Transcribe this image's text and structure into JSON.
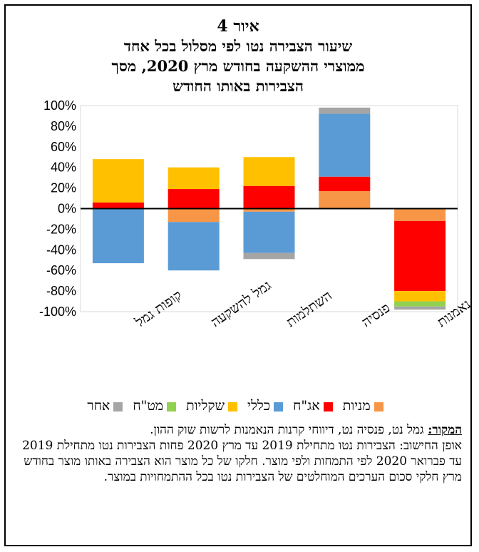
{
  "figure": {
    "label": "איור 4",
    "title_lines": [
      "שיעור הצבירה נטו לפי מסלול בכל אחד",
      "ממוצרי ההשקעה בחודש מרץ 2020, מסך",
      "הצבירות באותו החודש"
    ]
  },
  "chart_data": {
    "type": "bar",
    "stacked": true,
    "categories": [
      "קופות גמל",
      "גמל להשקעה",
      "השתלמות",
      "פנסיה",
      "נאמנות"
    ],
    "ylim": [
      -100,
      100
    ],
    "yticks": [
      -100,
      -80,
      -60,
      -40,
      -20,
      0,
      20,
      40,
      60,
      80,
      100
    ],
    "ytick_labels": [
      "-100%",
      "-80%",
      "-60%",
      "-40%",
      "-20%",
      "0%",
      "20%",
      "40%",
      "60%",
      "80%",
      "100%"
    ],
    "grid": false,
    "legend_position": "bottom",
    "series": [
      {
        "name": "מניות",
        "color": "#F79646",
        "values": [
          0,
          -13,
          -3,
          17,
          -12
        ]
      },
      {
        "name": "אג\"ח",
        "color": "#FF0000",
        "values": [
          6,
          19,
          22,
          14,
          -68
        ]
      },
      {
        "name": "כללי",
        "color": "#5B9BD5",
        "values": [
          -53,
          -47,
          -40,
          61,
          0
        ]
      },
      {
        "name": "שקליות",
        "color": "#FFC000",
        "values": [
          42,
          21,
          28,
          0,
          -10
        ]
      },
      {
        "name": "מט\"ח",
        "color": "#92D050",
        "values": [
          0,
          0,
          0,
          0,
          -5
        ]
      },
      {
        "name": "אחר",
        "color": "#A5A5A5",
        "values": [
          0,
          0,
          -6,
          6,
          -3
        ]
      }
    ]
  },
  "notes": {
    "source_label": "המקור:",
    "source_text": " גמל נט, פנסיה נט, דיווחי קרנות הנאמנות לרשות שוק ההון.",
    "method": "אופן החישוב: הצבירות נטו מתחילת 2019 עד מרץ 2020 פחות הצבירות נטו מתחילת 2019 עד פברואר 2020 לפי התמחות ולפי מוצר. חלקו של כל מוצר הוא הצבירה באותו מוצר בחודש מרץ חלקי סכום הערכים המוחלטים של הצבירות נטו בכל ההתמחויות במוצר."
  }
}
